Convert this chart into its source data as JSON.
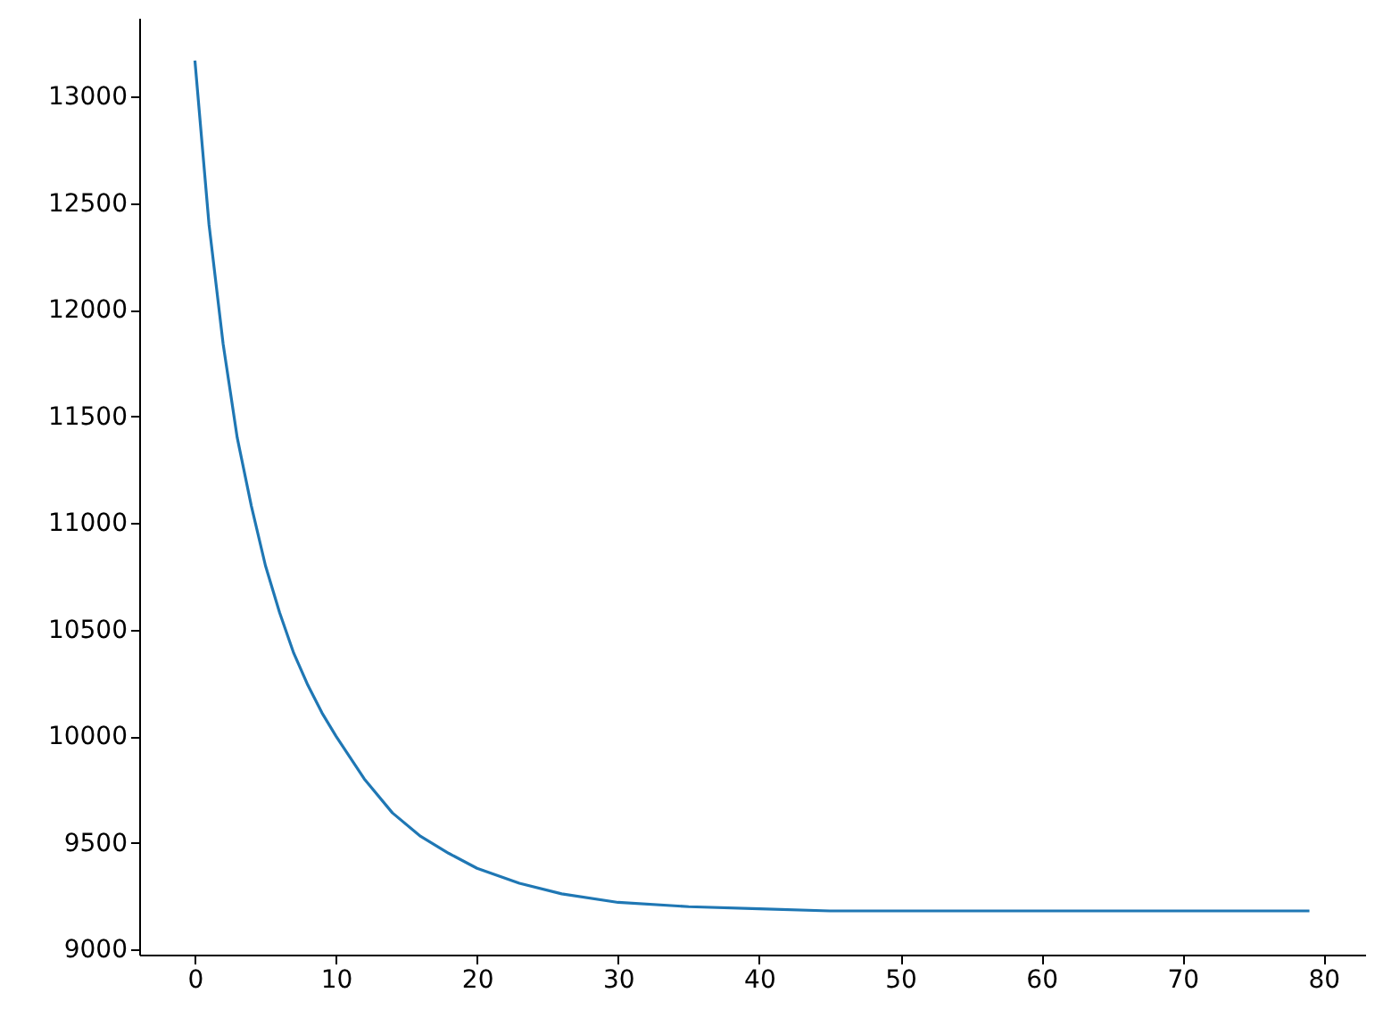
{
  "chart_data": {
    "type": "line",
    "x": [
      0,
      1,
      2,
      3,
      4,
      5,
      6,
      7,
      8,
      9,
      10,
      12,
      14,
      16,
      18,
      20,
      23,
      26,
      30,
      35,
      40,
      45,
      50,
      60,
      70,
      79
    ],
    "series": [
      {
        "color": "#1f77b4",
        "values": [
          13170,
          12400,
          11840,
          11400,
          11080,
          10800,
          10580,
          10390,
          10240,
          10110,
          10000,
          9800,
          9640,
          9530,
          9450,
          9380,
          9310,
          9260,
          9220,
          9200,
          9190,
          9180,
          9180,
          9180,
          9180,
          9180
        ]
      }
    ],
    "xlim": [
      -3.95,
      82.95
    ],
    "xticks": [
      0,
      10,
      20,
      30,
      40,
      50,
      60,
      70,
      80
    ],
    "ylim": [
      8975,
      13370
    ],
    "yticks": [
      9000,
      9500,
      10000,
      10500,
      11000,
      11500,
      12000,
      12500,
      13000
    ],
    "grid": false,
    "marker": "none",
    "line_style": "solid"
  }
}
